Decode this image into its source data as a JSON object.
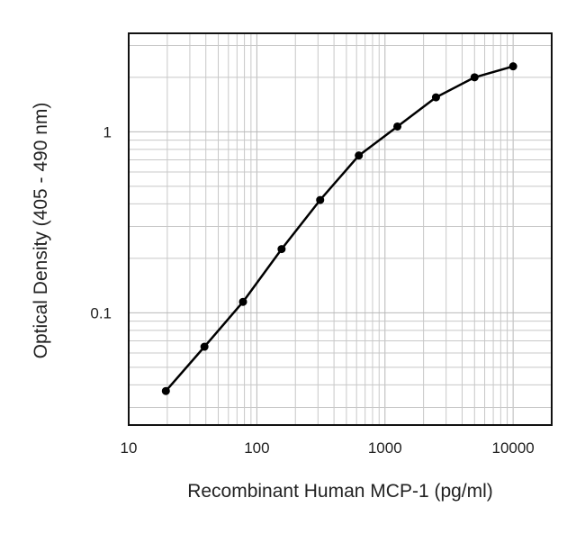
{
  "chart_data": {
    "type": "line",
    "title": "",
    "xlabel": "Recombinant Human MCP-1 (pg/ml)",
    "ylabel": "Optical Density (405 - 490 nm)",
    "xscale": "log",
    "yscale": "log",
    "xlim": [
      10,
      20000
    ],
    "ylim": [
      0.024,
      3.5
    ],
    "xticks": [
      {
        "value": 10,
        "label": "10"
      },
      {
        "value": 100,
        "label": "100"
      },
      {
        "value": 1000,
        "label": "1000"
      },
      {
        "value": 10000,
        "label": "10000"
      }
    ],
    "yticks": [
      {
        "value": 0.1,
        "label": "0.1"
      },
      {
        "value": 1,
        "label": "1"
      }
    ],
    "grid": true,
    "legend": "none",
    "series": [
      {
        "x": [
          19.5,
          39,
          78,
          156,
          312,
          625,
          1250,
          2500,
          5000,
          10000
        ],
        "y": [
          0.037,
          0.065,
          0.115,
          0.225,
          0.42,
          0.74,
          1.07,
          1.55,
          2.0,
          2.3
        ],
        "color": "#000000"
      }
    ]
  }
}
